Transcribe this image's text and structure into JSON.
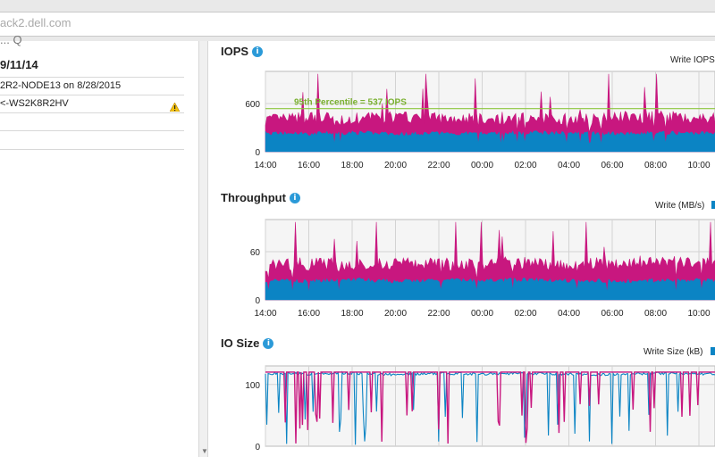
{
  "browser": {
    "url": "ack2.dell.com"
  },
  "sidebar": {
    "cut_header": "... Q",
    "date": "9/11/14",
    "node_line": "2R2-NODE13 on 8/28/2015",
    "host_line": "<-WS2K8R2HV"
  },
  "colors": {
    "read": "#c8177f",
    "write": "#0b84c4",
    "percentile": "#8dc63f",
    "grid": "#d3d3d3",
    "plot_bg": "#f5f5f5"
  },
  "charts": {
    "iops": {
      "title": "IOPS",
      "legend": "Write IOPS",
      "percentile_label": "95th Percentile = 537 IOPS"
    },
    "throughput": {
      "title": "Throughput",
      "legend": "Write (MB/s)"
    },
    "iosize": {
      "title": "IO Size",
      "legend": "Write Size (kB)"
    }
  },
  "chart_data": [
    {
      "type": "area",
      "title": "IOPS",
      "x": [
        "14:00",
        "16:00",
        "18:00",
        "20:00",
        "22:00",
        "00:00",
        "02:00",
        "04:00",
        "06:00",
        "08:00",
        "10:00"
      ],
      "yticks": [
        0,
        600
      ],
      "ylim": [
        0,
        1000
      ],
      "series": [
        {
          "name": "Write IOPS",
          "values": [
            230,
            225,
            235,
            220,
            230,
            225,
            235,
            230,
            228,
            232,
            230
          ]
        },
        {
          "values": [
            400,
            420,
            410,
            430,
            415,
            420,
            425,
            410,
            430,
            440,
            420
          ]
        }
      ],
      "annotation": {
        "label": "95th Percentile = 537 IOPS",
        "y": 537
      }
    },
    {
      "type": "area",
      "title": "Throughput",
      "x": [
        "14:00",
        "16:00",
        "18:00",
        "20:00",
        "22:00",
        "00:00",
        "02:00",
        "04:00",
        "06:00",
        "08:00",
        "10:00"
      ],
      "yticks": [
        0,
        60
      ],
      "ylim": [
        0,
        100
      ],
      "series": [
        {
          "name": "Write (MB/s)",
          "values": [
            24,
            23,
            25,
            23,
            24,
            24,
            25,
            24,
            23,
            24,
            24
          ]
        },
        {
          "values": [
            43,
            45,
            44,
            46,
            44,
            45,
            46,
            44,
            46,
            47,
            45
          ]
        }
      ]
    },
    {
      "type": "line",
      "title": "IO Size",
      "x": [
        "14:00",
        "16:00",
        "18:00",
        "20:00",
        "22:00",
        "00:00",
        "02:00",
        "04:00",
        "06:00",
        "08:00",
        "10:00"
      ],
      "yticks": [
        0,
        100
      ],
      "ylim": [
        0,
        130
      ],
      "series": [
        {
          "name": "Write Size (kB)",
          "values": [
            118,
            117,
            118,
            116,
            118,
            117,
            118,
            117,
            116,
            118,
            117
          ]
        },
        {
          "values": [
            120,
            120,
            120,
            120,
            120,
            120,
            120,
            120,
            120,
            120,
            120
          ]
        }
      ]
    }
  ]
}
